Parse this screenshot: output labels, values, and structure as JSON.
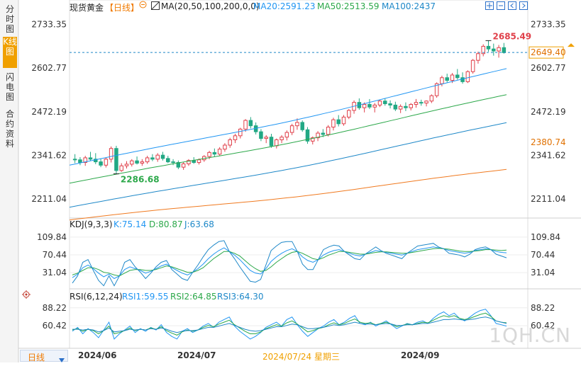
{
  "sidebar": {
    "tabs": [
      {
        "label": "分时图",
        "active": false
      },
      {
        "label": "K线图",
        "active": true
      },
      {
        "label": "闪电图",
        "active": false
      },
      {
        "label": "合约资料",
        "active": false
      }
    ]
  },
  "header": {
    "instrument": "现货黄金",
    "period_tag": "【日线】",
    "ma_label": "MA(20,50,100,200,0,0)",
    "ma20": "MA20:2591.23",
    "ma50": "MA50:2513.59",
    "ma100": "MA100:2437"
  },
  "kdj_header": {
    "label": "KDJ(9,3,3)",
    "k": "K:75.14",
    "d": "D:80.87",
    "j": "J:63.68"
  },
  "rsi_header": {
    "label": "RSI(6,12,24)",
    "r1": "RSI1:59.55",
    "r2": "RSI2:64.85",
    "r3": "RSI3:64.30"
  },
  "footer": {
    "period_button": "日线",
    "dates": [
      "2024/06",
      "2024/07",
      "2024/09"
    ],
    "cursor_date": "2024/07/24 星期三"
  },
  "watermark": "1QH.CN",
  "colors": {
    "up": "#e0404a",
    "down": "#22a884",
    "ma20": "#2196f3",
    "ma50": "#2ca84a",
    "ma100": "#1e88c8",
    "ma200": "#f07a20",
    "accent": "#f0a000"
  },
  "chart_data": [
    {
      "type": "candlestick",
      "title": "现货黄金 【日线】",
      "ylim": [
        2160,
        2760
      ],
      "y_ticks": [
        "2733.35",
        "2602.77",
        "2472.19",
        "2341.62",
        "2211.04"
      ],
      "last_price": "2649.40",
      "extra_price_label": "2380.74",
      "annotations": {
        "high": "2685.49",
        "low": "2286.68"
      },
      "ohlc": [
        [
          2330,
          2345,
          2318,
          2328
        ],
        [
          2328,
          2336,
          2312,
          2320
        ],
        [
          2320,
          2340,
          2310,
          2334
        ],
        [
          2334,
          2352,
          2325,
          2330
        ],
        [
          2330,
          2348,
          2315,
          2322
        ],
        [
          2322,
          2332,
          2306,
          2312
        ],
        [
          2312,
          2335,
          2305,
          2330
        ],
        [
          2330,
          2368,
          2320,
          2362
        ],
        [
          2362,
          2370,
          2286,
          2296
        ],
        [
          2296,
          2318,
          2292,
          2310
        ],
        [
          2310,
          2324,
          2302,
          2315
        ],
        [
          2315,
          2330,
          2308,
          2325
        ],
        [
          2325,
          2338,
          2314,
          2318
        ],
        [
          2318,
          2330,
          2310,
          2322
        ],
        [
          2322,
          2340,
          2316,
          2334
        ],
        [
          2334,
          2345,
          2324,
          2330
        ],
        [
          2330,
          2348,
          2322,
          2342
        ],
        [
          2342,
          2352,
          2326,
          2332
        ],
        [
          2332,
          2340,
          2318,
          2322
        ],
        [
          2322,
          2330,
          2312,
          2320
        ],
        [
          2320,
          2326,
          2300,
          2306
        ],
        [
          2306,
          2322,
          2298,
          2316
        ],
        [
          2316,
          2330,
          2310,
          2326
        ],
        [
          2326,
          2336,
          2316,
          2320
        ],
        [
          2320,
          2332,
          2314,
          2328
        ],
        [
          2328,
          2342,
          2322,
          2338
        ],
        [
          2338,
          2355,
          2330,
          2350
        ],
        [
          2350,
          2362,
          2338,
          2345
        ],
        [
          2345,
          2366,
          2340,
          2360
        ],
        [
          2360,
          2378,
          2352,
          2372
        ],
        [
          2372,
          2394,
          2364,
          2388
        ],
        [
          2388,
          2406,
          2378,
          2400
        ],
        [
          2400,
          2424,
          2392,
          2420
        ],
        [
          2420,
          2450,
          2412,
          2446
        ],
        [
          2446,
          2456,
          2422,
          2430
        ],
        [
          2430,
          2440,
          2404,
          2412
        ],
        [
          2412,
          2420,
          2384,
          2392
        ],
        [
          2392,
          2402,
          2378,
          2396
        ],
        [
          2396,
          2406,
          2364,
          2370
        ],
        [
          2370,
          2392,
          2362,
          2388
        ],
        [
          2388,
          2402,
          2378,
          2396
        ],
        [
          2396,
          2416,
          2386,
          2410
        ],
        [
          2410,
          2436,
          2402,
          2430
        ],
        [
          2430,
          2452,
          2418,
          2440
        ],
        [
          2440,
          2446,
          2412,
          2418
        ],
        [
          2418,
          2426,
          2376,
          2384
        ],
        [
          2384,
          2398,
          2374,
          2394
        ],
        [
          2394,
          2414,
          2384,
          2408
        ],
        [
          2408,
          2420,
          2396,
          2404
        ],
        [
          2404,
          2432,
          2398,
          2426
        ],
        [
          2426,
          2454,
          2416,
          2448
        ],
        [
          2448,
          2462,
          2428,
          2436
        ],
        [
          2436,
          2462,
          2430,
          2456
        ],
        [
          2456,
          2480,
          2450,
          2476
        ],
        [
          2476,
          2506,
          2466,
          2500
        ],
        [
          2500,
          2512,
          2478,
          2484
        ],
        [
          2484,
          2500,
          2470,
          2494
        ],
        [
          2494,
          2510,
          2480,
          2486
        ],
        [
          2486,
          2498,
          2470,
          2492
        ],
        [
          2492,
          2508,
          2486,
          2504
        ],
        [
          2504,
          2512,
          2490,
          2496
        ],
        [
          2496,
          2506,
          2482,
          2492
        ],
        [
          2492,
          2502,
          2474,
          2480
        ],
        [
          2480,
          2494,
          2468,
          2488
        ],
        [
          2488,
          2500,
          2474,
          2484
        ],
        [
          2484,
          2498,
          2476,
          2494
        ],
        [
          2494,
          2510,
          2484,
          2500
        ],
        [
          2500,
          2508,
          2490,
          2498
        ],
        [
          2498,
          2506,
          2488,
          2504
        ],
        [
          2504,
          2524,
          2498,
          2520
        ],
        [
          2520,
          2560,
          2514,
          2556
        ],
        [
          2556,
          2580,
          2548,
          2574
        ],
        [
          2574,
          2586,
          2560,
          2566
        ],
        [
          2566,
          2588,
          2558,
          2582
        ],
        [
          2582,
          2600,
          2568,
          2574
        ],
        [
          2574,
          2590,
          2556,
          2562
        ],
        [
          2562,
          2596,
          2558,
          2592
        ],
        [
          2592,
          2630,
          2586,
          2626
        ],
        [
          2626,
          2652,
          2616,
          2646
        ],
        [
          2646,
          2674,
          2638,
          2668
        ],
        [
          2668,
          2685,
          2652,
          2660
        ],
        [
          2660,
          2676,
          2640,
          2654
        ],
        [
          2654,
          2672,
          2634,
          2664
        ],
        [
          2664,
          2678,
          2646,
          2649
        ]
      ],
      "ma_series": [
        {
          "name": "MA20",
          "key": "ma20",
          "start": 2312,
          "end": 2600
        },
        {
          "name": "MA50",
          "key": "ma50",
          "start": 2258,
          "end": 2522
        },
        {
          "name": "MA100",
          "key": "ma100",
          "start": 2186,
          "end": 2438
        },
        {
          "name": "MA200",
          "key": "ma200",
          "start": 2148,
          "end": 2298
        }
      ]
    },
    {
      "type": "line",
      "title": "KDJ(9,3,3)",
      "ylim": [
        0,
        130
      ],
      "y_ticks": [
        "109.84",
        "70.44",
        "31.04"
      ],
      "series": [
        {
          "name": "K",
          "values": [
            20,
            28,
            42,
            48,
            40,
            30,
            22,
            28,
            18,
            24,
            38,
            44,
            40,
            36,
            30,
            34,
            40,
            46,
            50,
            42,
            36,
            30,
            26,
            32,
            40,
            50,
            62,
            72,
            80,
            86,
            78,
            70,
            60,
            48,
            36,
            30,
            28,
            40,
            56,
            66,
            74,
            80,
            84,
            78,
            66,
            58,
            54,
            60,
            70,
            76,
            80,
            82,
            78,
            74,
            70,
            68,
            72,
            76,
            80,
            78,
            76,
            74,
            72,
            70,
            74,
            78,
            82,
            84,
            86,
            88,
            86,
            84,
            80,
            78,
            76,
            74,
            76,
            80,
            82,
            84,
            82,
            78,
            76,
            75
          ]
        },
        {
          "name": "D",
          "values": [
            26,
            30,
            36,
            42,
            42,
            38,
            32,
            30,
            26,
            24,
            30,
            36,
            38,
            38,
            36,
            36,
            38,
            42,
            46,
            44,
            40,
            36,
            32,
            32,
            36,
            42,
            52,
            62,
            70,
            78,
            78,
            74,
            68,
            58,
            48,
            40,
            34,
            36,
            44,
            54,
            62,
            70,
            76,
            78,
            74,
            68,
            62,
            60,
            64,
            70,
            74,
            78,
            78,
            76,
            74,
            72,
            72,
            74,
            76,
            77,
            77,
            76,
            75,
            74,
            74,
            76,
            78,
            80,
            82,
            84,
            85,
            84,
            83,
            81,
            79,
            78,
            78,
            79,
            80,
            82,
            82,
            81,
            80,
            81
          ]
        },
        {
          "name": "J",
          "values": [
            8,
            24,
            54,
            60,
            36,
            14,
            2,
            24,
            2,
            24,
            54,
            60,
            44,
            32,
            18,
            30,
            44,
            54,
            58,
            38,
            28,
            18,
            14,
            32,
            48,
            66,
            82,
            92,
            100,
            102,
            78,
            62,
            44,
            28,
            12,
            10,
            16,
            48,
            80,
            90,
            98,
            100,
            100,
            78,
            50,
            38,
            38,
            60,
            82,
            88,
            92,
            90,
            78,
            70,
            62,
            60,
            72,
            80,
            88,
            80,
            74,
            70,
            66,
            62,
            74,
            82,
            90,
            92,
            94,
            96,
            88,
            84,
            74,
            72,
            70,
            66,
            72,
            82,
            86,
            88,
            82,
            72,
            68,
            64
          ]
        }
      ]
    },
    {
      "type": "line",
      "title": "RSI(6,12,24)",
      "ylim": [
        30,
        100
      ],
      "y_ticks": [
        "88.22",
        "60.42"
      ],
      "series": [
        {
          "name": "RSI1",
          "values": [
            52,
            58,
            48,
            56,
            50,
            42,
            54,
            66,
            40,
            48,
            54,
            60,
            50,
            56,
            52,
            58,
            54,
            62,
            50,
            44,
            40,
            52,
            56,
            50,
            54,
            60,
            64,
            58,
            66,
            70,
            74,
            60,
            52,
            46,
            40,
            44,
            50,
            58,
            62,
            66,
            60,
            70,
            74,
            62,
            52,
            44,
            50,
            56,
            60,
            66,
            70,
            62,
            66,
            72,
            76,
            64,
            62,
            66,
            60,
            64,
            68,
            62,
            56,
            60,
            64,
            62,
            66,
            68,
            64,
            72,
            78,
            82,
            76,
            80,
            72,
            68,
            74,
            80,
            84,
            86,
            76,
            64,
            62,
            60
          ]
        },
        {
          "name": "RSI2",
          "values": [
            54,
            56,
            52,
            55,
            53,
            48,
            53,
            60,
            48,
            50,
            53,
            57,
            53,
            55,
            54,
            57,
            55,
            59,
            53,
            49,
            46,
            51,
            54,
            52,
            54,
            58,
            61,
            59,
            63,
            66,
            69,
            62,
            57,
            52,
            48,
            48,
            51,
            56,
            59,
            62,
            60,
            65,
            68,
            63,
            57,
            51,
            53,
            56,
            58,
            62,
            65,
            62,
            64,
            68,
            71,
            66,
            64,
            65,
            62,
            64,
            66,
            63,
            59,
            61,
            63,
            62,
            64,
            66,
            65,
            69,
            73,
            76,
            74,
            76,
            72,
            70,
            72,
            75,
            78,
            80,
            75,
            68,
            66,
            65
          ]
        },
        {
          "name": "RSI3",
          "values": [
            55,
            55,
            54,
            55,
            54,
            51,
            53,
            57,
            51,
            52,
            53,
            55,
            54,
            55,
            54,
            56,
            55,
            57,
            55,
            52,
            50,
            52,
            53,
            53,
            54,
            56,
            58,
            58,
            60,
            62,
            64,
            61,
            58,
            55,
            53,
            52,
            53,
            55,
            57,
            59,
            59,
            61,
            63,
            62,
            59,
            56,
            56,
            57,
            58,
            60,
            62,
            61,
            62,
            64,
            66,
            64,
            63,
            63,
            62,
            63,
            64,
            63,
            61,
            61,
            62,
            62,
            63,
            64,
            64,
            66,
            68,
            70,
            70,
            71,
            70,
            69,
            70,
            71,
            73,
            74,
            72,
            68,
            66,
            64
          ]
        }
      ]
    }
  ]
}
